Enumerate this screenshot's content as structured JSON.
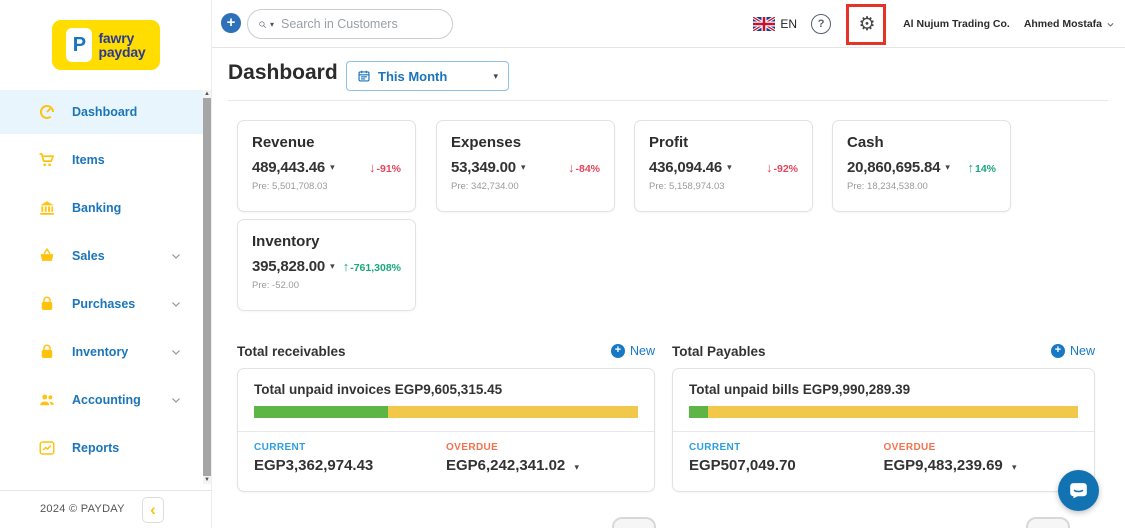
{
  "brand": {
    "logo_line1": "fawry",
    "logo_line2": "payday",
    "logo_emblem": "P",
    "footer_text": "2024 © PAYDAY"
  },
  "icons": {
    "plus": "+",
    "value_caret": "▾",
    "search_caret": "▾",
    "period_caret": "▾",
    "gear": "⚙",
    "help": "?",
    "arrow_down": "↓",
    "arrow_up": "↑",
    "collapse": "‹",
    "scroll_up": "▲",
    "scroll_down": "▼"
  },
  "colors": {
    "sidebar_accent_blue": "#1B75BB",
    "icon_yellow": "#FFC20E",
    "logo_bg_yellow": "#FFDD00",
    "negative_red": "#E8445A",
    "positive_green": "#18A97C",
    "progress_green": "#5CB544",
    "progress_yellow": "#F2C84B",
    "current_blue": "#2E9FE0",
    "overdue_orange": "#F4734E",
    "annotation_red": "#E53328",
    "chat_blue": "#1273B2"
  },
  "header": {
    "search_placeholder": "Search in Customers",
    "language": "EN",
    "company": "Al Nujum Trading Co.",
    "user": "Ahmed Mostafa"
  },
  "sidebar": {
    "items": [
      {
        "label": "Dashboard",
        "icon": "gauge-icon",
        "active": true,
        "expandable": false
      },
      {
        "label": "Items",
        "icon": "cart-icon",
        "active": false,
        "expandable": false
      },
      {
        "label": "Banking",
        "icon": "bank-icon",
        "active": false,
        "expandable": false
      },
      {
        "label": "Sales",
        "icon": "basket-icon",
        "active": false,
        "expandable": true
      },
      {
        "label": "Purchases",
        "icon": "bag-icon",
        "active": false,
        "expandable": true
      },
      {
        "label": "Inventory",
        "icon": "bag-icon",
        "active": false,
        "expandable": true
      },
      {
        "label": "Accounting",
        "icon": "users-icon",
        "active": false,
        "expandable": true
      },
      {
        "label": "Reports",
        "icon": "chart-icon",
        "active": false,
        "expandable": false
      }
    ]
  },
  "main": {
    "title": "Dashboard",
    "period_selector": "This Month",
    "kpis": [
      {
        "title": "Revenue",
        "value": "489,443.46",
        "change": "-91%",
        "direction": "down",
        "previous": "Pre: 5,501,708.03"
      },
      {
        "title": "Expenses",
        "value": "53,349.00",
        "change": "-84%",
        "direction": "down",
        "previous": "Pre: 342,734.00"
      },
      {
        "title": "Profit",
        "value": "436,094.46",
        "change": "-92%",
        "direction": "down",
        "previous": "Pre: 5,158,974.03"
      },
      {
        "title": "Cash",
        "value": "20,860,695.84",
        "change": "14%",
        "direction": "up",
        "previous": "Pre: 18,234,538.00"
      },
      {
        "title": "Inventory",
        "value": "395,828.00",
        "change": "-761,308%",
        "direction": "up",
        "previous": "Pre: -52.00"
      }
    ],
    "receivables": {
      "section_title": "Total receivables",
      "new_label": "New",
      "summary": "Total unpaid invoices EGP9,605,315.45",
      "progress_current_pct": 35,
      "current_label": "CURRENT",
      "current_value": "EGP3,362,974.43",
      "overdue_label": "OVERDUE",
      "overdue_value": "EGP6,242,341.02"
    },
    "payables": {
      "section_title": "Total Payables",
      "new_label": "New",
      "summary": "Total unpaid bills EGP9,990,289.39",
      "progress_current_pct": 5,
      "current_label": "CURRENT",
      "current_value": "EGP507,049.70",
      "overdue_label": "OVERDUE",
      "overdue_value": "EGP9,483,239.69"
    }
  }
}
